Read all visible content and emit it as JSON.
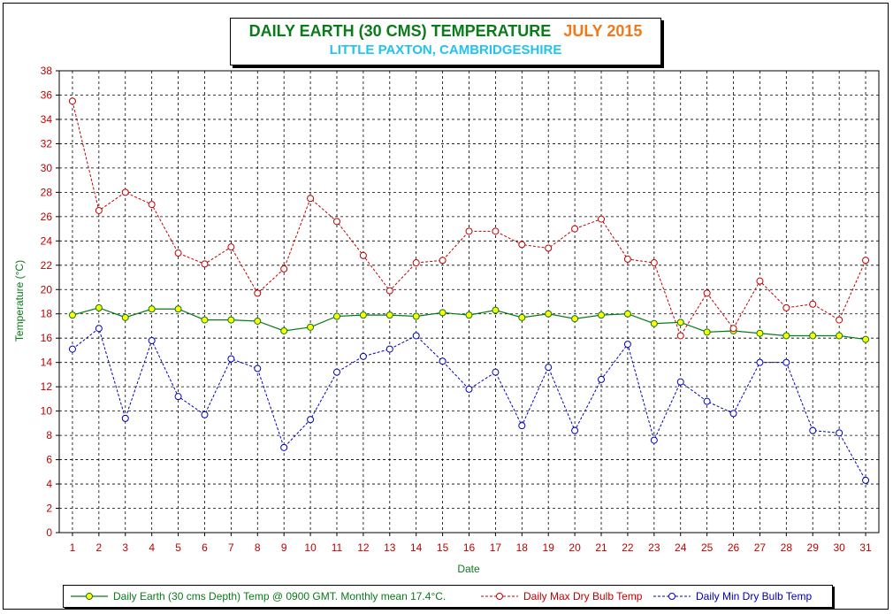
{
  "chart_data": {
    "type": "line",
    "title": "DAILY EARTH (30 CMS) TEMPERATURE",
    "title_month": "JULY 2015",
    "subtitle": "LITTLE PAXTON, CAMBRIDGESHIRE",
    "xlabel": "Date",
    "ylabel": "Temperature (°C)",
    "x": [
      1,
      2,
      3,
      4,
      5,
      6,
      7,
      8,
      9,
      10,
      11,
      12,
      13,
      14,
      15,
      16,
      17,
      18,
      19,
      20,
      21,
      22,
      23,
      24,
      25,
      26,
      27,
      28,
      29,
      30,
      31
    ],
    "ylim": [
      0,
      38
    ],
    "ytick_step": 2,
    "grid": true,
    "legend_position": "bottom",
    "series": [
      {
        "name": "Daily Earth (30 cms Depth) Temp @ 0900 GMT. Monthly mean 17.4°C.",
        "color": "#0a7a1a",
        "marker_fill": "#ffff00",
        "line_style": "solid",
        "values": [
          17.9,
          18.5,
          17.7,
          18.4,
          18.4,
          17.5,
          17.5,
          17.4,
          16.6,
          16.9,
          17.8,
          17.9,
          17.9,
          17.8,
          18.1,
          17.9,
          18.3,
          17.7,
          18.0,
          17.6,
          17.9,
          18.0,
          17.2,
          17.3,
          16.5,
          16.6,
          16.4,
          16.2,
          16.2,
          16.2,
          15.9
        ]
      },
      {
        "name": "Daily Max Dry Bulb Temp",
        "color": "#c00000",
        "marker_fill": "#ffffff",
        "line_style": "dashed",
        "values": [
          35.5,
          26.5,
          28.0,
          27.0,
          23.0,
          22.1,
          23.5,
          19.7,
          21.7,
          27.5,
          25.6,
          22.8,
          19.9,
          22.2,
          22.4,
          24.8,
          24.8,
          23.7,
          23.4,
          25.0,
          25.8,
          22.5,
          22.2,
          16.2,
          19.7,
          16.8,
          20.7,
          18.5,
          18.8,
          17.5,
          22.4
        ]
      },
      {
        "name": "Daily Min Dry Bulb Temp",
        "color": "#0000bb",
        "marker_fill": "#ffffff",
        "line_style": "dashed",
        "values": [
          15.1,
          16.8,
          9.4,
          15.8,
          11.2,
          9.7,
          14.3,
          13.5,
          7.0,
          9.3,
          13.2,
          14.5,
          15.1,
          16.2,
          14.1,
          11.8,
          13.2,
          8.8,
          13.6,
          8.4,
          12.6,
          15.5,
          7.6,
          12.4,
          10.8,
          9.8,
          14.0,
          14.0,
          8.4,
          8.2,
          4.3
        ]
      }
    ]
  }
}
